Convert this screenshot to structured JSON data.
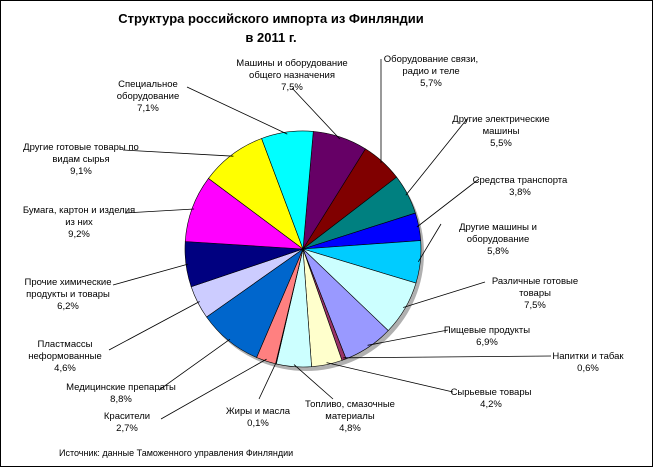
{
  "title": {
    "line1": "Структура российского импорта из Финляндии",
    "line2": "в 2011 г."
  },
  "source": "Источник: данные Таможенного управления Финляндии",
  "chart_data": {
    "type": "pie",
    "title": "Структура российского импорта из Финляндии в 2011 г.",
    "unit": "%",
    "slices": [
      {
        "label": "Машины и оборудование общего назначения",
        "value_text": "7,5%",
        "value": 7.5,
        "color": "#660066"
      },
      {
        "label": "Оборудование связи, радио и теле",
        "value_text": "5,7%",
        "value": 5.7,
        "color": "#800000"
      },
      {
        "label": "Другие электрические машины",
        "value_text": "5,5%",
        "value": 5.5,
        "color": "#008080"
      },
      {
        "label": "Средства транспорта",
        "value_text": "3,8%",
        "value": 3.8,
        "color": "#0000ff"
      },
      {
        "label": "Другие машины и оборудование",
        "value_text": "5,8%",
        "value": 5.8,
        "color": "#00ccff"
      },
      {
        "label": "Различные готовые товары",
        "value_text": "7,5%",
        "value": 7.5,
        "color": "#ccffff"
      },
      {
        "label": "Пищевые продукты",
        "value_text": "6,9%",
        "value": 6.9,
        "color": "#9999ff"
      },
      {
        "label": "Напитки и табак",
        "value_text": "0,6%",
        "value": 0.6,
        "color": "#993366"
      },
      {
        "label": "Сырьевые товары",
        "value_text": "4,2%",
        "value": 4.2,
        "color": "#ffffcc"
      },
      {
        "label": "Топливо, смазочные материалы",
        "value_text": "4,8%",
        "value": 4.8,
        "color": "#ccffff"
      },
      {
        "label": "Жиры и масла",
        "value_text": "0,1%",
        "value": 0.1,
        "color": "#660066"
      },
      {
        "label": "Красители",
        "value_text": "2,7%",
        "value": 2.7,
        "color": "#ff8080"
      },
      {
        "label": "Медицинские препараты",
        "value_text": "8,8%",
        "value": 8.8,
        "color": "#0066cc"
      },
      {
        "label": "Пластмассы неформованные",
        "value_text": "4,6%",
        "value": 4.6,
        "color": "#ccccff"
      },
      {
        "label": "Прочие химические продукты и товары",
        "value_text": "6,2%",
        "value": 6.2,
        "color": "#000080"
      },
      {
        "label": "Бумага, картон и изделия из них",
        "value_text": "9,2%",
        "value": 9.2,
        "color": "#ff00ff"
      },
      {
        "label": "Другие готовые товары по видам сырья",
        "value_text": "9,1%",
        "value": 9.1,
        "color": "#ffff00"
      },
      {
        "label": "Специальное оборудование",
        "value_text": "7,1%",
        "value": 7.1,
        "color": "#00ffff"
      }
    ],
    "legend": "none"
  }
}
